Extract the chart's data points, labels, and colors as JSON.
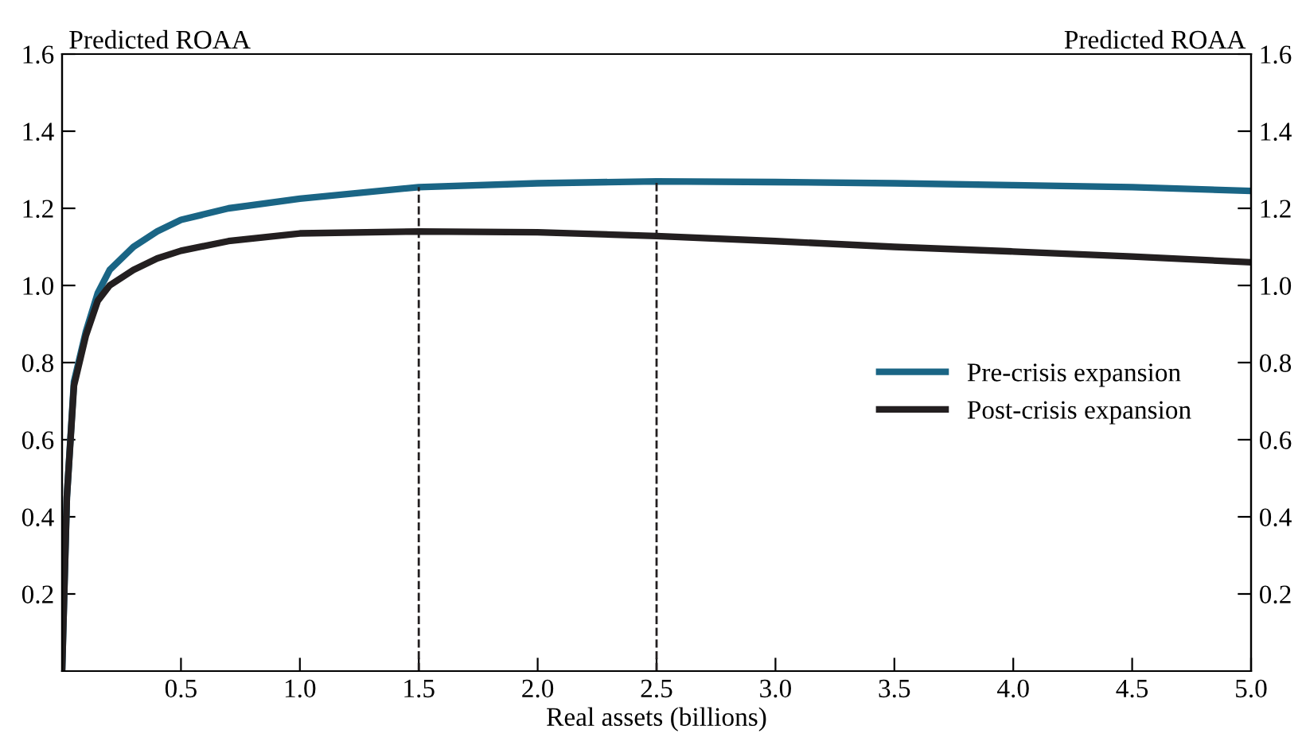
{
  "chart_data": {
    "type": "line",
    "xlabel": "Real assets (billions)",
    "ylabel": "Predicted ROAA",
    "y2label": "Predicted ROAA",
    "xlim": [
      0,
      5.0
    ],
    "xticks": [
      0.5,
      {
        "value": 1,
        "label": "1.0"
      },
      1.5,
      {
        "value": 2,
        "label": "2.0"
      },
      2.5,
      {
        "value": 3,
        "label": "3.0"
      },
      3.5,
      {
        "value": 4,
        "label": "4.0"
      },
      4.5,
      {
        "value": 5,
        "label": "5.0"
      }
    ],
    "ylim": [
      0,
      1.6
    ],
    "yticks": [
      0.2,
      0.4,
      0.6,
      0.8,
      {
        "value": 1,
        "label": "1.0"
      },
      1.2,
      1.4,
      1.6
    ],
    "y2lim": [
      0,
      1.6
    ],
    "y2ticks": [
      0.2,
      0.4,
      0.6,
      0.8,
      {
        "value": 1,
        "label": "1.0"
      },
      1.2,
      1.4,
      1.6
    ],
    "x": [
      0,
      0.02,
      0.05,
      0.1,
      0.15,
      0.2,
      0.3,
      0.4,
      0.5,
      0.7,
      1.0,
      1.5,
      2.0,
      2.5,
      3.0,
      3.5,
      4.0,
      4.5,
      5.0
    ],
    "series": [
      {
        "name": "Pre-crisis expansion",
        "color": "#1a6585",
        "values": [
          0,
          0.45,
          0.75,
          0.88,
          0.98,
          1.04,
          1.1,
          1.14,
          1.17,
          1.2,
          1.225,
          1.255,
          1.265,
          1.27,
          1.268,
          1.265,
          1.26,
          1.255,
          1.245
        ]
      },
      {
        "name": "Post-crisis expansion",
        "color": "#231f20",
        "values": [
          0,
          0.45,
          0.74,
          0.87,
          0.96,
          1.0,
          1.04,
          1.07,
          1.09,
          1.115,
          1.135,
          1.14,
          1.138,
          1.128,
          1.115,
          1.1,
          1.088,
          1.075,
          1.06
        ]
      }
    ],
    "ref_lines": [
      {
        "axis": "x",
        "value": 1.5,
        "color": "#231f20",
        "line_style": "dashed"
      },
      {
        "axis": "x",
        "value": 2.5,
        "color": "#231f20",
        "line_style": "dashed"
      }
    ],
    "legend": "right",
    "grid": false,
    "marker": "none",
    "line_style": "solid"
  }
}
